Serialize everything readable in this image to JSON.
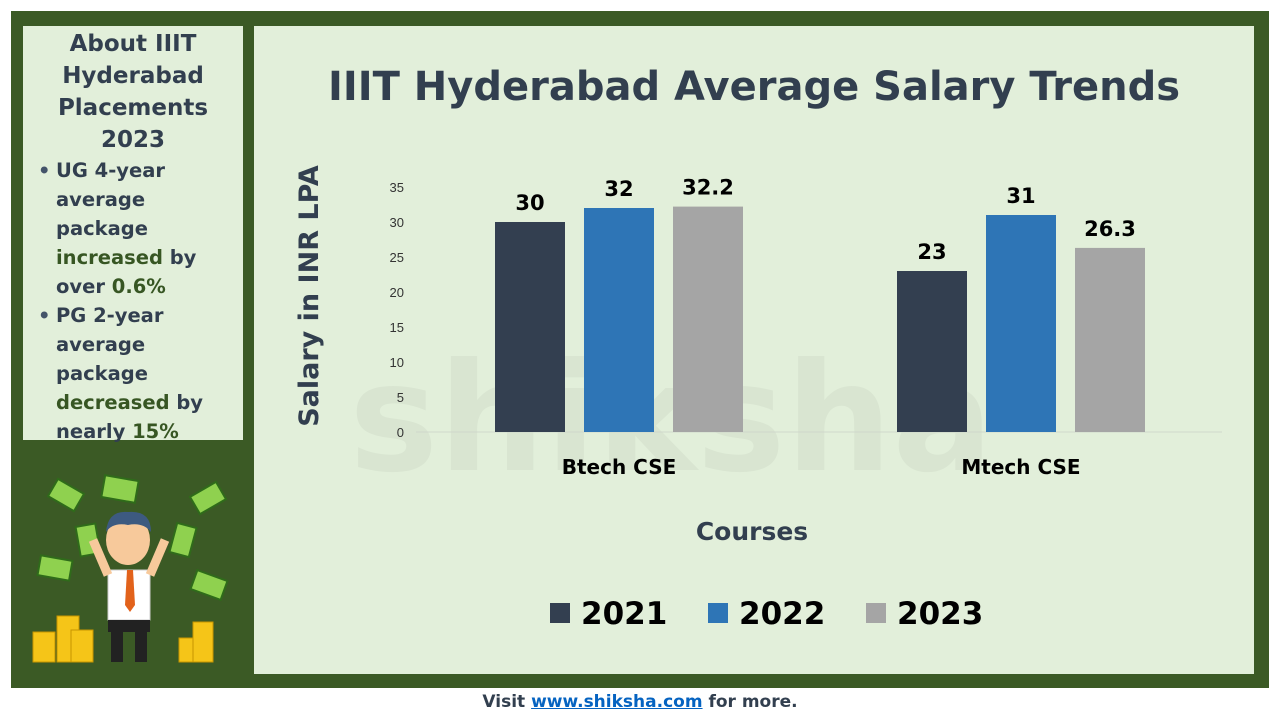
{
  "sidebar": {
    "heading": "About IIIT Hyderabad Placements 2023",
    "bullets": [
      {
        "pre": "UG 4-year average package ",
        "highlight": "increased",
        "mid": " by over ",
        "value": "0.6%"
      },
      {
        "pre": "PG 2-year average package ",
        "highlight": "decreased",
        "mid": " by nearly ",
        "value": "15%"
      }
    ]
  },
  "footer": {
    "pre": "Visit ",
    "link": "www.shiksha.com",
    "post": " for more."
  },
  "watermark": "shiksha",
  "chart_data": {
    "type": "bar",
    "title": "IIIT Hyderabad Average Salary Trends",
    "xlabel": "Courses",
    "ylabel": "Salary in INR LPA",
    "ylim": [
      0,
      35
    ],
    "yticks": [
      "0",
      "5",
      "10",
      "15",
      "20",
      "25",
      "30",
      "35"
    ],
    "categories": [
      "Btech CSE",
      "Mtech CSE"
    ],
    "series": [
      {
        "name": "2021",
        "values": [
          30,
          23
        ],
        "labels": [
          "30",
          "23"
        ],
        "color": "#333f50"
      },
      {
        "name": "2022",
        "values": [
          32,
          31
        ],
        "labels": [
          "32",
          "31"
        ],
        "color": "#2e75b6"
      },
      {
        "name": "2023",
        "values": [
          32.2,
          26.3
        ],
        "labels": [
          "32.2",
          "26.3"
        ],
        "color": "#a5a5a5"
      }
    ],
    "grid": false,
    "legend": "bottom"
  }
}
